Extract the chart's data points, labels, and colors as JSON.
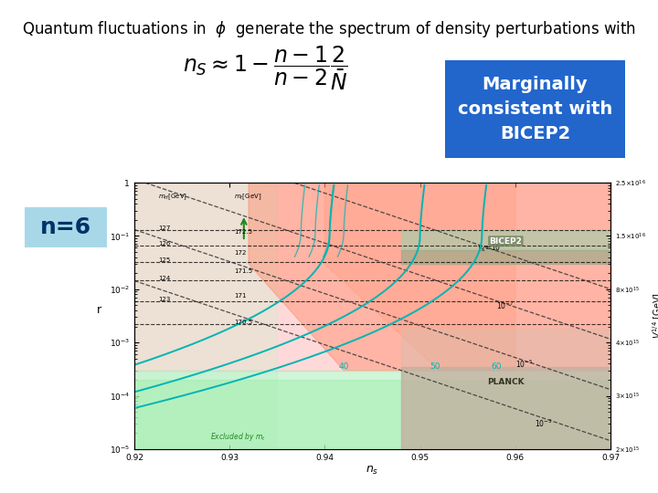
{
  "background_color": "#ffffff",
  "title_text": "Quantum fluctuations in  $\\phi$  generate the spectrum of density perturbations with",
  "formula": "$n_S \\approx 1 - \\dfrac{n-1}{n-2}\\dfrac{2}{\\bar{N}}$",
  "n6_label": "n=6",
  "n6_box_color": "#a8d8e8",
  "n6_text_color": "#003366",
  "marginally_text": "Marginally\nconsistent with\nBICEP2",
  "marginally_box_color": "#2266cc",
  "marginally_text_color": "#ffffff",
  "title_fontsize": 12,
  "formula_fontsize": 17,
  "n6_fontsize": 18,
  "marginally_fontsize": 14,
  "ns_min": 0.92,
  "ns_max": 0.97,
  "r_min": 1e-05,
  "r_max": 1.0,
  "teal_color": "#00b4b4",
  "dashed_color": "#333333",
  "green_excl_color": "#99dd99",
  "red_light_color": "#ffaaaa",
  "red_mid_color": "#ff8888",
  "red_dark_color": "#ee6655",
  "planck_color": "#b8a898",
  "bicep2_green_color": "#aaccaa",
  "bicep2_olive_color": "#9aaa88"
}
